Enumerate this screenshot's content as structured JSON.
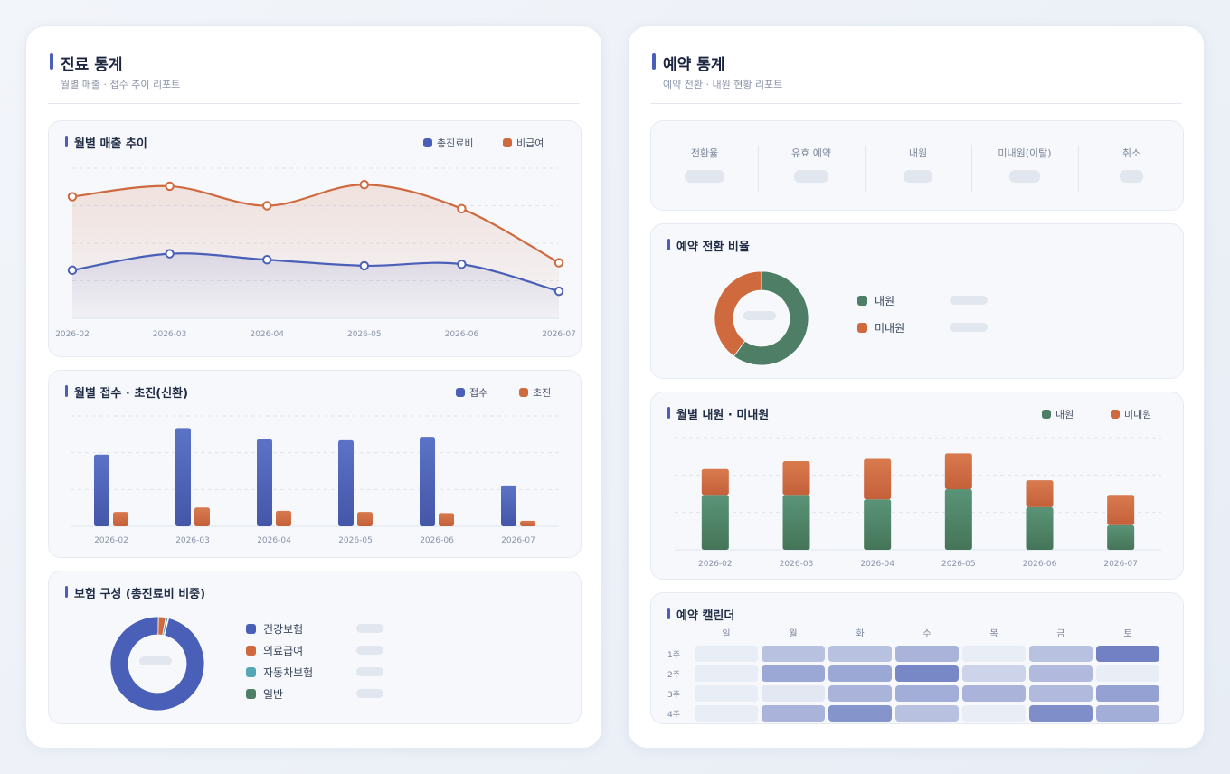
{
  "left": {
    "title": "진료 통계",
    "subtitle": "월별 매출 · 접수 추이 리포트",
    "revenue": {
      "title": "월별 매출 추이",
      "legend": [
        {
          "label": "총진료비",
          "color": "#4a5fb8"
        },
        {
          "label": "비급여",
          "color": "#cf6a3f"
        }
      ]
    },
    "visits": {
      "title": "월별 접수 · 초진(신환)",
      "legend": [
        {
          "label": "접수",
          "color": "#4a5fb8"
        },
        {
          "label": "초진",
          "color": "#cf6a3f"
        }
      ]
    },
    "insurance": {
      "title": "보험 구성 (총진료비 비중)",
      "legend": [
        {
          "label": "건강보험",
          "color": "#4a5fb8"
        },
        {
          "label": "의료급여",
          "color": "#cf6a3f"
        },
        {
          "label": "자동차보험",
          "color": "#55a7b5"
        },
        {
          "label": "일반",
          "color": "#4e7f66"
        }
      ]
    }
  },
  "right": {
    "title": "예약 통계",
    "subtitle": "예약 전환 · 내원 현황 리포트",
    "stats": [
      "전환율",
      "유효 예약",
      "내원",
      "미내원(이탈)",
      "취소"
    ],
    "conversion": {
      "title": "예약 전환 비율",
      "legend": [
        {
          "label": "내원",
          "color": "#4e7f66"
        },
        {
          "label": "미내원",
          "color": "#cf6a3f"
        }
      ]
    },
    "monthly": {
      "title": "월별 내원 · 미내원",
      "legend": [
        {
          "label": "내원",
          "color": "#4e7f66"
        },
        {
          "label": "미내원",
          "color": "#cf6a3f"
        }
      ]
    },
    "calendar": {
      "title": "예약 캘린더",
      "days": [
        "일",
        "월",
        "화",
        "수",
        "목",
        "금",
        "토"
      ],
      "weeks": [
        "1주",
        "2주",
        "3주",
        "4주"
      ],
      "intensity": [
        [
          0.0,
          0.35,
          0.35,
          0.45,
          0.0,
          0.35,
          0.85
        ],
        [
          0.0,
          0.55,
          0.55,
          0.8,
          0.2,
          0.4,
          0.0
        ],
        [
          0.0,
          0.05,
          0.45,
          0.5,
          0.45,
          0.4,
          0.6
        ],
        [
          0.0,
          0.45,
          0.7,
          0.35,
          0.0,
          0.75,
          0.5
        ]
      ]
    }
  },
  "chart_data": [
    {
      "type": "area",
      "title": "월별 매출 추이",
      "categories": [
        "2026-02",
        "2026-03",
        "2026-04",
        "2026-05",
        "2026-06",
        "2026-07"
      ],
      "series": [
        {
          "name": "총진료비",
          "values": [
            0.32,
            0.43,
            0.39,
            0.35,
            0.36,
            0.18
          ]
        },
        {
          "name": "비급여",
          "values": [
            0.81,
            0.88,
            0.75,
            0.89,
            0.73,
            0.37
          ]
        }
      ],
      "ylim": [
        0,
        1
      ]
    },
    {
      "type": "bar",
      "title": "월별 접수 · 초진(신환)",
      "categories": [
        "2026-02",
        "2026-03",
        "2026-04",
        "2026-05",
        "2026-06",
        "2026-07"
      ],
      "series": [
        {
          "name": "접수",
          "values": [
            0.65,
            0.89,
            0.79,
            0.78,
            0.81,
            0.37
          ]
        },
        {
          "name": "초진",
          "values": [
            0.13,
            0.17,
            0.14,
            0.13,
            0.12,
            0.05
          ]
        }
      ],
      "ylim": [
        0,
        1
      ]
    },
    {
      "type": "pie",
      "title": "보험 구성 (총진료비 비중)",
      "categories": [
        "건강보험",
        "의료급여",
        "자동차보험",
        "일반"
      ],
      "values": [
        96.5,
        2.5,
        0.8,
        0.2
      ]
    },
    {
      "type": "pie",
      "title": "예약 전환 비율",
      "categories": [
        "내원",
        "미내원"
      ],
      "values": [
        60,
        40
      ]
    },
    {
      "type": "bar",
      "title": "월별 내원 · 미내원",
      "categories": [
        "2026-02",
        "2026-03",
        "2026-04",
        "2026-05",
        "2026-06",
        "2026-07"
      ],
      "series": [
        {
          "name": "내원",
          "values": [
            0.49,
            0.49,
            0.45,
            0.54,
            0.38,
            0.22
          ]
        },
        {
          "name": "미내원",
          "values": [
            0.23,
            0.3,
            0.36,
            0.32,
            0.24,
            0.27
          ]
        }
      ],
      "stacked": true,
      "ylim": [
        0,
        1
      ]
    }
  ]
}
